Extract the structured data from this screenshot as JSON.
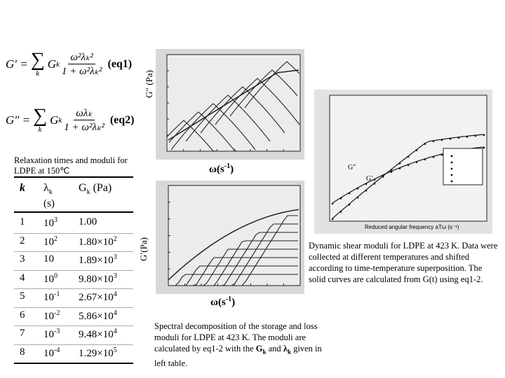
{
  "equations": [
    {
      "lhs": "G′ =",
      "sum": "∑",
      "sum_index": "k",
      "coef": "G",
      "coef_sub": "k",
      "numerator": "ω²λₖ²",
      "denominator": "1 + ω²λₖ²",
      "tag": "(eq1)"
    },
    {
      "lhs": "G″ =",
      "sum": "∑",
      "sum_index": "k",
      "coef": "G",
      "coef_sub": "k",
      "numerator": "ωλₖ",
      "denominator": "1 + ω²λₖ²",
      "tag": "(eq2)"
    }
  ],
  "table": {
    "caption": "Relaxation times and moduli for LDPE at 150℃",
    "header": [
      [
        {
          "t": "k"
        }
      ],
      [
        {
          "t": "λ"
        },
        {
          "sub": "k"
        }
      ],
      [
        {
          "t": "G"
        },
        {
          "sub": "k"
        },
        {
          "t": " (Pa)"
        }
      ]
    ],
    "header_unit": "(s)",
    "rows": [
      [
        [
          {
            "t": "1"
          }
        ],
        [
          {
            "t": "10"
          },
          {
            "sup": "3"
          }
        ],
        [
          {
            "t": "1.00"
          }
        ]
      ],
      [
        [
          {
            "t": "2"
          }
        ],
        [
          {
            "t": "10"
          },
          {
            "sup": "2"
          }
        ],
        [
          {
            "t": "1.80×10"
          },
          {
            "sup": "2"
          }
        ]
      ],
      [
        [
          {
            "t": "3"
          }
        ],
        [
          {
            "t": "10"
          }
        ],
        [
          {
            "t": "1.89×10"
          },
          {
            "sup": "3"
          }
        ]
      ],
      [
        [
          {
            "t": "4"
          }
        ],
        [
          {
            "t": "10"
          },
          {
            "sup": "0"
          }
        ],
        [
          {
            "t": "9.80×10"
          },
          {
            "sup": "3"
          }
        ]
      ],
      [
        [
          {
            "t": "5"
          }
        ],
        [
          {
            "t": "10"
          },
          {
            "sup": "-1"
          }
        ],
        [
          {
            "t": "2.67×10"
          },
          {
            "sup": "4"
          }
        ]
      ],
      [
        [
          {
            "t": "6"
          }
        ],
        [
          {
            "t": "10"
          },
          {
            "sup": "-2"
          }
        ],
        [
          {
            "t": "5.86×10"
          },
          {
            "sup": "4"
          }
        ]
      ],
      [
        [
          {
            "t": "7"
          }
        ],
        [
          {
            "t": "10"
          },
          {
            "sup": "-3"
          }
        ],
        [
          {
            "t": "9.48×10"
          },
          {
            "sup": "4"
          }
        ]
      ],
      [
        [
          {
            "t": "8"
          }
        ],
        [
          {
            "t": "10"
          },
          {
            "sup": "-4"
          }
        ],
        [
          {
            "t": "1.29×10"
          },
          {
            "sup": "5"
          }
        ]
      ]
    ]
  },
  "figures": {
    "loss": {
      "ylabel": "G″ (Pa)",
      "xlabel": [
        {
          "t": "ω(s"
        },
        {
          "sup": "-1"
        },
        {
          "t": ")"
        }
      ]
    },
    "storage": {
      "ylabel": "G′(Pa)",
      "xlabel": [
        {
          "t": "ω(s"
        },
        {
          "sup": "-1"
        },
        {
          "t": ")"
        }
      ]
    },
    "master": {
      "curve_labels": [
        "G″",
        "G′"
      ],
      "xlabel": "Reduced angular frequency aTω (s⁻¹)"
    }
  },
  "captions": {
    "spectral": [
      {
        "t": "Spectral decomposition of the storage and loss moduli for LDPE at 423 K. The moduli are calculated by eq1-2 with the "
      },
      {
        "b": "G"
      },
      {
        "bsub": "k"
      },
      {
        "t": " and "
      },
      {
        "b": "λ"
      },
      {
        "bsub": "k"
      },
      {
        "t": " given in left table."
      }
    ],
    "master": "Dynamic shear moduli for LDPE at 423 K. Data were collected at different temperatures and shifted according to time-temperature superposition. The solid curves are calculated from G(t) using eq1-2."
  }
}
